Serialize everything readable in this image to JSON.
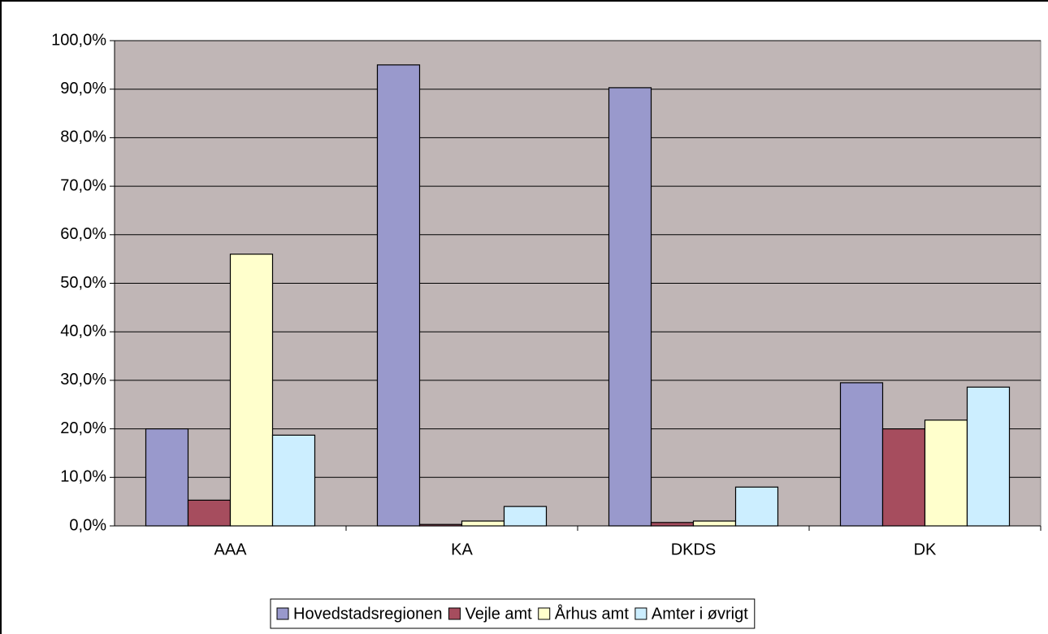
{
  "chart_data": {
    "type": "bar",
    "categories": [
      "AAA",
      "KA",
      "DKDS",
      "DK"
    ],
    "series": [
      {
        "name": "Hovedstadsregionen",
        "color": "#9999cc",
        "values": [
          20.0,
          95.0,
          90.3,
          29.5
        ]
      },
      {
        "name": "Vejle amt",
        "color": "#a64d5e",
        "values": [
          5.3,
          0.3,
          0.7,
          20.0
        ]
      },
      {
        "name": "Århus amt",
        "color": "#ffffcc",
        "values": [
          56.0,
          1.0,
          1.0,
          21.8
        ]
      },
      {
        "name": "Amter i øvrigt",
        "color": "#cceeff",
        "values": [
          18.7,
          4.0,
          8.0,
          28.6
        ]
      }
    ],
    "ylim": [
      0,
      100
    ],
    "yticks": [
      {
        "value": 0,
        "label": "0,0%"
      },
      {
        "value": 10,
        "label": "10,0%"
      },
      {
        "value": 20,
        "label": "20,0%"
      },
      {
        "value": 30,
        "label": "30,0%"
      },
      {
        "value": 40,
        "label": "40,0%"
      },
      {
        "value": 50,
        "label": "50,0%"
      },
      {
        "value": 60,
        "label": "60,0%"
      },
      {
        "value": 70,
        "label": "70,0%"
      },
      {
        "value": 80,
        "label": "80,0%"
      },
      {
        "value": 90,
        "label": "90,0%"
      },
      {
        "value": 100,
        "label": "100,0%"
      }
    ],
    "grid": true,
    "legend": "bottom",
    "plot_background": "#c0b6b6"
  }
}
